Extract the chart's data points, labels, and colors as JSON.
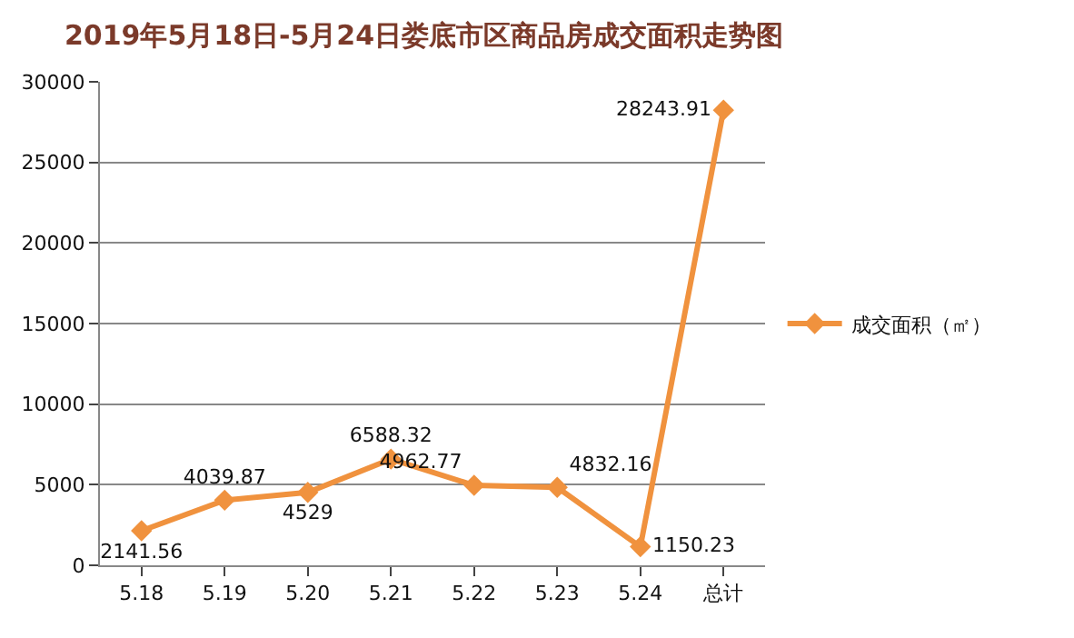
{
  "chart_data": {
    "type": "line",
    "title": "2019年5月18日-5月24日娄底市区商品房成交面积走势图",
    "categories": [
      "5.18",
      "5.19",
      "5.20",
      "5.21",
      "5.22",
      "5.23",
      "5.24",
      "总计"
    ],
    "series": [
      {
        "name": "成交面积（㎡）",
        "color": "#f0923e",
        "values": [
          2141.56,
          4039.87,
          4529,
          6588.32,
          4962.77,
          4832.16,
          1150.23,
          28243.91
        ]
      }
    ],
    "ylim": [
      0,
      30000
    ],
    "yticks": [
      0,
      5000,
      10000,
      15000,
      20000,
      25000,
      30000
    ],
    "grid": "y",
    "legend": "right",
    "marker": "diamond",
    "data_labels": true
  }
}
